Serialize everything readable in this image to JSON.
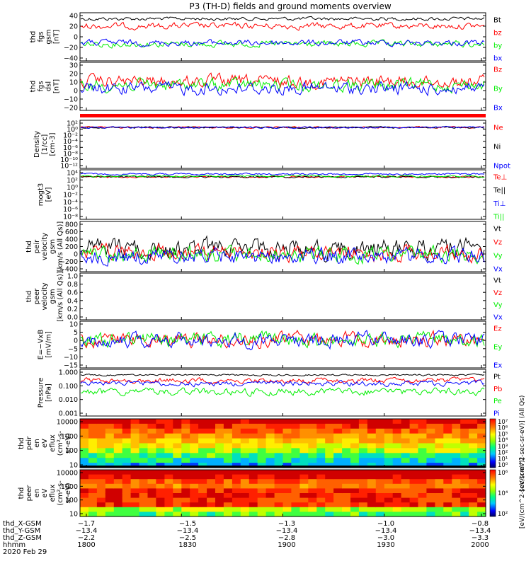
{
  "title": "P3 (TH-D) fields and ground moments overview",
  "colors": {
    "black": "#000000",
    "red": "#ff0000",
    "green": "#00ee00",
    "blue": "#0000ff"
  },
  "chart_data": [
    {
      "type": "line",
      "ylabel": [
        "thd",
        "fgs",
        "gsm",
        "[nT]"
      ],
      "ylim": [
        -40,
        40
      ],
      "yticks": [
        "40",
        "20",
        "0",
        "−20",
        "−40"
      ],
      "series": [
        {
          "name": "Bt",
          "color": "black",
          "level": 30
        },
        {
          "name": "bz",
          "color": "red",
          "level": 18
        },
        {
          "name": "by",
          "color": "green",
          "level": -12
        },
        {
          "name": "bx",
          "color": "blue",
          "level": -10
        }
      ]
    },
    {
      "type": "line",
      "ylabel": [
        "thd",
        "fgs",
        "dsl",
        "[nT]"
      ],
      "ylim": [
        -25,
        30
      ],
      "yticks": [
        "30",
        "20",
        "10",
        "0",
        "−10",
        "−20"
      ],
      "series": [
        {
          "name": "Bz",
          "color": "red",
          "level": 8
        },
        {
          "name": "By",
          "color": "green",
          "level": 4
        },
        {
          "name": "Bx",
          "color": "blue",
          "level": 0
        }
      ]
    },
    {
      "type": "line",
      "ylabel": [
        "Density",
        "[1/cc]",
        "[cm-3]"
      ],
      "yscale": "log",
      "yticks": [
        "10²",
        "10⁰",
        "10⁻²",
        "10⁻⁴",
        "10⁻⁶",
        "10⁻⁸",
        "10⁻¹⁰",
        "10⁻¹²"
      ],
      "series": [
        {
          "name": "Ne",
          "color": "red"
        },
        {
          "name": "Ni",
          "color": "black"
        },
        {
          "name": "Npot",
          "color": "blue"
        }
      ]
    },
    {
      "type": "line",
      "ylabel": [
        "mogt3",
        "[eV]"
      ],
      "yscale": "log",
      "yticks": [
        "10⁴",
        "10²",
        "10⁰",
        "10⁻²",
        "10⁻⁴",
        "10⁻⁶",
        "10⁻⁸"
      ],
      "series": [
        {
          "name": "Te⊥",
          "color": "red"
        },
        {
          "name": "Te||",
          "color": "black"
        },
        {
          "name": "Ti⊥",
          "color": "blue"
        },
        {
          "name": "Ti||",
          "color": "green"
        }
      ]
    },
    {
      "type": "line",
      "ylabel": [
        "thd",
        "peir",
        "velocity",
        "gsm",
        "[km/s (All Qs)]"
      ],
      "ylim": [
        -400,
        800
      ],
      "yticks": [
        "800",
        "600",
        "400",
        "200",
        "0",
        "−200",
        "−400"
      ],
      "series": [
        {
          "name": "Vt",
          "color": "black",
          "level": 150
        },
        {
          "name": "Vz",
          "color": "red",
          "level": 40
        },
        {
          "name": "Vy",
          "color": "green",
          "level": 10
        },
        {
          "name": "Vx",
          "color": "blue",
          "level": -40
        }
      ]
    },
    {
      "type": "line",
      "ylabel": [
        "thd",
        "peer",
        "velocity",
        "gsm",
        "[km/s (All Qs)]"
      ],
      "ylim": [
        0,
        1
      ],
      "yticks": [
        "1.0",
        "0.8",
        "0.6",
        "0.4",
        "0.2",
        "0.0"
      ],
      "series": [
        {
          "name": "Vt",
          "color": "black"
        },
        {
          "name": "Vz",
          "color": "red"
        },
        {
          "name": "Vy",
          "color": "green"
        },
        {
          "name": "Vx",
          "color": "blue"
        }
      ]
    },
    {
      "type": "line",
      "ylabel": [
        "E=−VxB",
        "[mV/m]"
      ],
      "ylim": [
        -15,
        10
      ],
      "yticks": [
        "10",
        "5",
        "0",
        "−5",
        "−10",
        "−15"
      ],
      "series": [
        {
          "name": "Ez",
          "color": "red",
          "level": 0
        },
        {
          "name": "Ey",
          "color": "green",
          "level": 0
        },
        {
          "name": "Ex",
          "color": "blue",
          "level": 0
        }
      ]
    },
    {
      "type": "line",
      "ylabel": [
        "Pressure",
        "[nPa]"
      ],
      "yscale": "log",
      "yticks": [
        "1.000",
        "0.100",
        "0.010",
        "0.001"
      ],
      "series": [
        {
          "name": "Pt",
          "color": "black"
        },
        {
          "name": "Pb",
          "color": "red"
        },
        {
          "name": "Pe",
          "color": "green"
        },
        {
          "name": "Pi",
          "color": "blue"
        }
      ]
    },
    {
      "type": "heatmap",
      "ylabel": [
        "thd",
        "peir",
        "en",
        "eV",
        "eflux",
        "(cm²-s-",
        "sr-eV)"
      ],
      "yticks": [
        "10000",
        "1000",
        "100",
        "10"
      ],
      "colorbar": {
        "label": "[eV/(cm^2-sec-sr-eV)] (All Qs)",
        "ticks": [
          "10⁷",
          "10⁶",
          "10⁵",
          "10⁴",
          "10³",
          "10²",
          "10¹",
          "10⁰"
        ]
      }
    },
    {
      "type": "heatmap",
      "ylabel": [
        "thd",
        "peer",
        "en",
        "eV",
        "eflux",
        "(cm²-s-",
        "sr-eV)"
      ],
      "yticks": [
        "10000",
        "1000",
        "100",
        "10"
      ],
      "colorbar": {
        "label": "[eV/(cm^2-sec-sr-eV)]",
        "ticks": [
          "10⁶",
          "10⁴",
          "10²"
        ]
      }
    }
  ],
  "x_axis": {
    "rows": [
      {
        "label": "thd_X-GSM",
        "values": [
          "−1.7",
          "−1.5",
          "−1.3",
          "−1.0",
          "−0.8"
        ]
      },
      {
        "label": "thd_Y-GSM",
        "values": [
          "−13.4",
          "−13.4",
          "−13.4",
          "−13.4",
          "−13.4"
        ]
      },
      {
        "label": "thd_Z-GSM",
        "values": [
          "−2.2",
          "−2.5",
          "−2.8",
          "−3.0",
          "−3.3"
        ]
      },
      {
        "label": "hhmm",
        "values": [
          "1800",
          "1830",
          "1900",
          "1930",
          "2000"
        ]
      }
    ],
    "date": "2020 Feb 29"
  }
}
